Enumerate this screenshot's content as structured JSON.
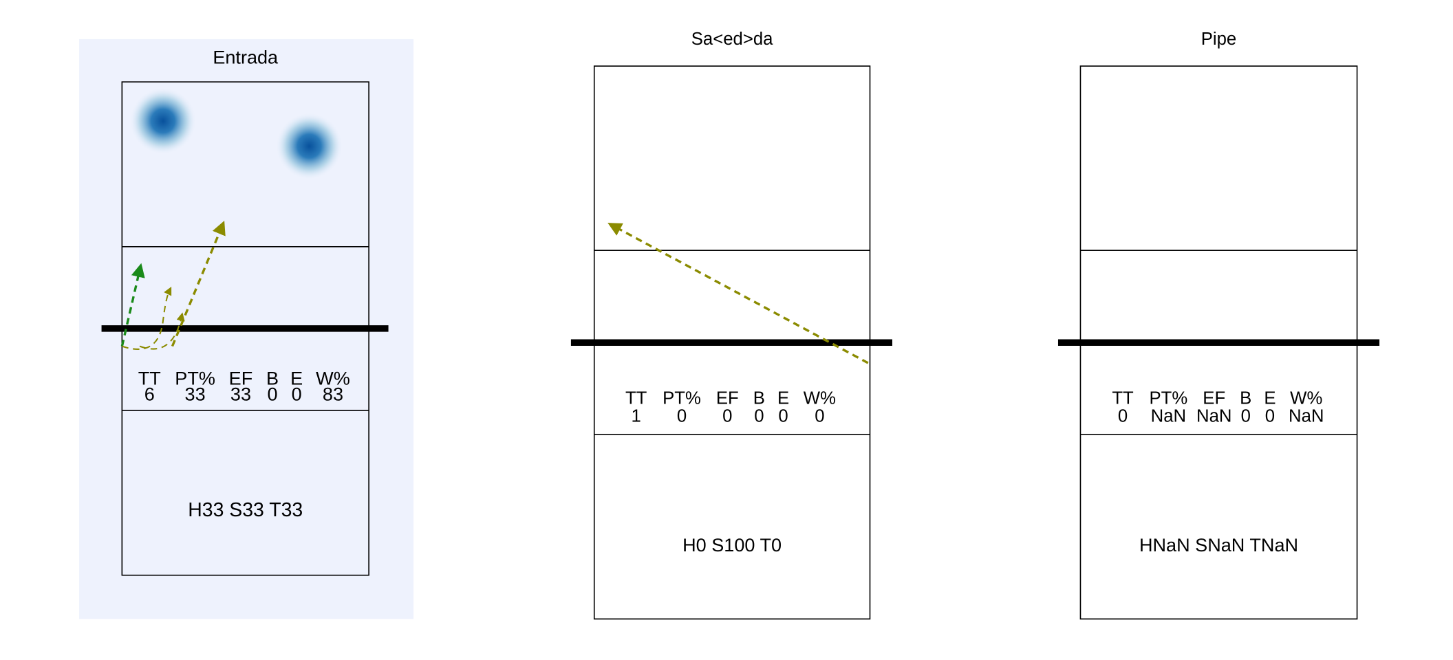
{
  "panels": [
    {
      "title": "Entrada",
      "stats_header": [
        "TT",
        "PT%",
        "EF",
        "B",
        "E",
        "W%"
      ],
      "stats_values": [
        6,
        33,
        33,
        0,
        0,
        83
      ],
      "summary": "H33 S33 T33"
    },
    {
      "title": "Sa<ed>da",
      "stats_header": [
        "TT",
        "PT%",
        "EF",
        "B",
        "E",
        "W%"
      ],
      "stats_values": [
        1,
        0,
        0,
        0,
        0,
        0
      ],
      "summary": "H0 S100 T0"
    },
    {
      "title": "Pipe",
      "stats_header": [
        "TT",
        "PT%",
        "EF",
        "B",
        "E",
        "W%"
      ],
      "stats_values": [
        0,
        "NaN",
        "NaN",
        0,
        0,
        "NaN"
      ],
      "summary": "HNaN SNaN TNaN"
    }
  ]
}
